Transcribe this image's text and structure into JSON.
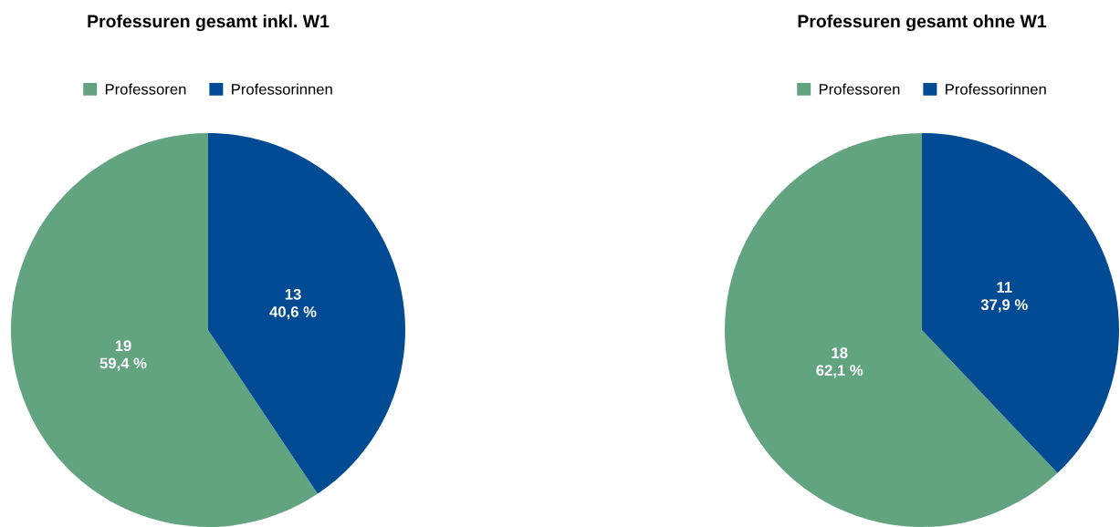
{
  "chart_data": [
    {
      "type": "pie",
      "title": "Professuren gesamt inkl. W1",
      "categories": [
        "Professoren",
        "Professorinnen"
      ],
      "values": [
        19,
        13
      ],
      "colors": [
        "#62a480",
        "#004b93"
      ],
      "value_labels": [
        "19\n59,4 %",
        "13\n40,6 %"
      ],
      "legend": "top"
    },
    {
      "type": "pie",
      "title": "Professuren gesamt ohne W1",
      "categories": [
        "Professoren",
        "Professorinnen"
      ],
      "values": [
        18,
        11
      ],
      "colors": [
        "#62a480",
        "#004b93"
      ],
      "value_labels": [
        "18\n62,1 %",
        "11\n37,9 %"
      ],
      "legend": "top"
    }
  ]
}
